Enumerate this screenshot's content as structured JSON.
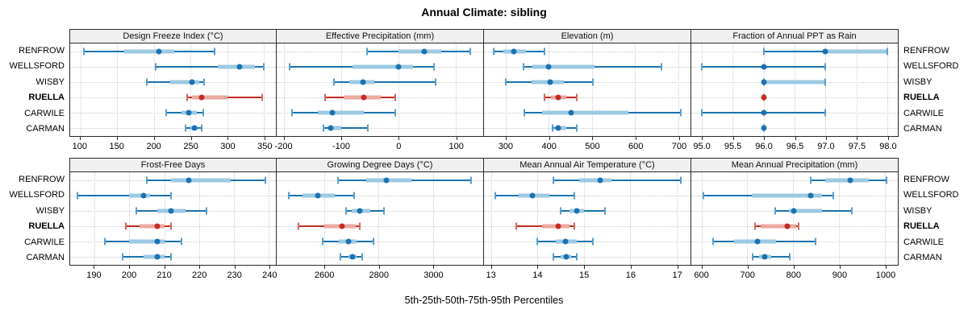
{
  "title": "Annual Climate: sibling",
  "footer": "5th-25th-50th-75th-95th Percentiles",
  "stations": [
    "RENFROW",
    "WELLSFORD",
    "WISBY",
    "RUELLA",
    "CARWILE",
    "CARMAN"
  ],
  "highlight_station": "RUELLA",
  "colors": {
    "series_main": "#1b72b0",
    "series_band": "#9ec9e2",
    "series_cap": "#5a9fcb",
    "highlight_main": "#c42b20",
    "highlight_band": "#eba9a2",
    "highlight_cap": "#d3685e",
    "grid": "#cccccc",
    "border": "#2a2a2a",
    "strip_bg": "#f0f0f0"
  },
  "chart_data": [
    {
      "type": "interval",
      "row": "top",
      "title": "Design Freeze Index (°C)",
      "xlim": [
        86,
        366
      ],
      "ticks": [
        100,
        150,
        200,
        250,
        300,
        350
      ],
      "tick_labels": [
        "100",
        "150",
        "200",
        "250",
        "300",
        "350"
      ],
      "series": [
        {
          "station": "RENFROW",
          "percentiles": [
            105,
            160,
            207,
            228,
            283
          ]
        },
        {
          "station": "WELLSFORD",
          "percentiles": [
            202,
            287,
            317,
            338,
            349
          ]
        },
        {
          "station": "WISBY",
          "percentiles": [
            190,
            222,
            252,
            262,
            268
          ]
        },
        {
          "station": "RUELLA",
          "percentiles": [
            245,
            252,
            265,
            300,
            347
          ]
        },
        {
          "station": "CARWILE",
          "percentiles": [
            217,
            237,
            247,
            258,
            267
          ]
        },
        {
          "station": "CARMAN",
          "percentiles": [
            243,
            250,
            255,
            260,
            265
          ]
        }
      ]
    },
    {
      "type": "interval",
      "row": "top",
      "title": "Effective Precipitation (mm)",
      "xlim": [
        -212,
        148
      ],
      "ticks": [
        -200,
        -100,
        0,
        100
      ],
      "tick_labels": [
        "-200",
        "-100",
        "0",
        "100"
      ],
      "series": [
        {
          "station": "RENFROW",
          "percentiles": [
            -55,
            0,
            45,
            75,
            125
          ]
        },
        {
          "station": "WELLSFORD",
          "percentiles": [
            -190,
            -80,
            0,
            25,
            62
          ]
        },
        {
          "station": "WISBY",
          "percentiles": [
            -112,
            -85,
            -62,
            -42,
            65
          ]
        },
        {
          "station": "RUELLA",
          "percentiles": [
            -127,
            -95,
            -60,
            -30,
            -5
          ]
        },
        {
          "station": "CARWILE",
          "percentiles": [
            -185,
            -140,
            -115,
            -60,
            -5
          ]
        },
        {
          "station": "CARMAN",
          "percentiles": [
            -130,
            -122,
            -118,
            -100,
            -53
          ]
        }
      ]
    },
    {
      "type": "interval",
      "row": "top",
      "title": "Elevation (m)",
      "xlim": [
        250,
        728
      ],
      "ticks": [
        300,
        400,
        500,
        600,
        700
      ],
      "tick_labels": [
        "300",
        "400",
        "500",
        "600",
        "700"
      ],
      "series": [
        {
          "station": "RENFROW",
          "percentiles": [
            272,
            295,
            320,
            348,
            390
          ]
        },
        {
          "station": "WELLSFORD",
          "percentiles": [
            342,
            362,
            400,
            505,
            660
          ]
        },
        {
          "station": "WISBY",
          "percentiles": [
            300,
            360,
            403,
            435,
            503
          ]
        },
        {
          "station": "RUELLA",
          "percentiles": [
            390,
            405,
            422,
            440,
            465
          ]
        },
        {
          "station": "CARWILE",
          "percentiles": [
            343,
            385,
            452,
            585,
            705
          ]
        },
        {
          "station": "CARMAN",
          "percentiles": [
            408,
            415,
            422,
            440,
            465
          ]
        }
      ]
    },
    {
      "type": "interval",
      "row": "top",
      "title": "Fraction of Annual PPT as Rain",
      "xlim": [
        94.83,
        98.17
      ],
      "ticks": [
        95.0,
        95.5,
        96.0,
        96.5,
        97.0,
        97.5,
        98.0
      ],
      "tick_labels": [
        "95.0",
        "95.5",
        "96.0",
        "96.5",
        "97.0",
        "97.5",
        "98.0"
      ],
      "series": [
        {
          "station": "RENFROW",
          "percentiles": [
            96,
            97,
            97,
            98,
            98
          ]
        },
        {
          "station": "WELLSFORD",
          "percentiles": [
            95,
            96,
            96,
            96,
            97
          ]
        },
        {
          "station": "WISBY",
          "percentiles": [
            96,
            96,
            96,
            97,
            97
          ]
        },
        {
          "station": "RUELLA",
          "percentiles": [
            96,
            96,
            96,
            96,
            96
          ]
        },
        {
          "station": "CARWILE",
          "percentiles": [
            95,
            96,
            96,
            96,
            97
          ]
        },
        {
          "station": "CARMAN",
          "percentiles": [
            96,
            96,
            96,
            96,
            96
          ]
        }
      ]
    },
    {
      "type": "interval",
      "row": "bottom",
      "title": "Frost-Free Days",
      "xlim": [
        183,
        242
      ],
      "ticks": [
        190,
        200,
        210,
        220,
        230,
        240
      ],
      "tick_labels": [
        "190",
        "200",
        "210",
        "220",
        "230",
        "240"
      ],
      "series": [
        {
          "station": "RENFROW",
          "percentiles": [
            205,
            212,
            217,
            229,
            239
          ]
        },
        {
          "station": "WELLSFORD",
          "percentiles": [
            185,
            200,
            204,
            206,
            212
          ]
        },
        {
          "station": "WISBY",
          "percentiles": [
            202,
            208,
            212,
            216,
            222
          ]
        },
        {
          "station": "RUELLA",
          "percentiles": [
            199,
            203,
            208,
            210,
            212
          ]
        },
        {
          "station": "CARWILE",
          "percentiles": [
            193,
            200,
            208,
            210,
            215
          ]
        },
        {
          "station": "CARMAN",
          "percentiles": [
            198,
            204,
            208,
            210,
            212
          ]
        }
      ]
    },
    {
      "type": "interval",
      "row": "bottom",
      "title": "Growing Degree Days (°C)",
      "xlim": [
        2425,
        3185
      ],
      "ticks": [
        2600,
        2800,
        3000
      ],
      "tick_labels": [
        "2600",
        "2800",
        "3000"
      ],
      "series": [
        {
          "station": "RENFROW",
          "percentiles": [
            2650,
            2755,
            2830,
            2920,
            3140
          ]
        },
        {
          "station": "WELLSFORD",
          "percentiles": [
            2470,
            2520,
            2575,
            2640,
            2710
          ]
        },
        {
          "station": "WISBY",
          "percentiles": [
            2680,
            2700,
            2730,
            2770,
            2820
          ]
        },
        {
          "station": "RUELLA",
          "percentiles": [
            2505,
            2600,
            2665,
            2715,
            2730
          ]
        },
        {
          "station": "CARWILE",
          "percentiles": [
            2595,
            2655,
            2690,
            2720,
            2780
          ]
        },
        {
          "station": "CARMAN",
          "percentiles": [
            2660,
            2690,
            2705,
            2720,
            2740
          ]
        }
      ]
    },
    {
      "type": "interval",
      "row": "bottom",
      "title": "Mean Annual Air Temperature (°C)",
      "xlim": [
        12.85,
        17.3
      ],
      "ticks": [
        13,
        14,
        15,
        16,
        17
      ],
      "tick_labels": [
        "13",
        "14",
        "15",
        "16",
        "17"
      ],
      "series": [
        {
          "station": "RENFROW",
          "percentiles": [
            14.35,
            14.9,
            15.35,
            15.6,
            17.1
          ]
        },
        {
          "station": "WELLSFORD",
          "percentiles": [
            13.1,
            13.6,
            13.9,
            14.25,
            14.8
          ]
        },
        {
          "station": "WISBY",
          "percentiles": [
            14.5,
            14.7,
            14.85,
            15.0,
            15.45
          ]
        },
        {
          "station": "RUELLA",
          "percentiles": [
            13.55,
            14.1,
            14.45,
            14.7,
            14.8
          ]
        },
        {
          "station": "CARWILE",
          "percentiles": [
            14.0,
            14.4,
            14.6,
            14.85,
            15.2
          ]
        },
        {
          "station": "CARMAN",
          "percentiles": [
            14.35,
            14.5,
            14.62,
            14.72,
            14.85
          ]
        }
      ]
    },
    {
      "type": "interval",
      "row": "bottom",
      "title": "Mean Annual Precipitation (mm)",
      "xlim": [
        578,
        1028
      ],
      "ticks": [
        600,
        700,
        800,
        900,
        1000
      ],
      "tick_labels": [
        "600",
        "700",
        "800",
        "900",
        "1000"
      ],
      "series": [
        {
          "station": "RENFROW",
          "percentiles": [
            838,
            870,
            925,
            965,
            1003
          ]
        },
        {
          "station": "WELLSFORD",
          "percentiles": [
            605,
            710,
            838,
            862,
            888
          ]
        },
        {
          "station": "WISBY",
          "percentiles": [
            760,
            790,
            802,
            862,
            928
          ]
        },
        {
          "station": "RUELLA",
          "percentiles": [
            717,
            730,
            788,
            806,
            812
          ]
        },
        {
          "station": "CARWILE",
          "percentiles": [
            625,
            672,
            723,
            762,
            848
          ]
        },
        {
          "station": "CARMAN",
          "percentiles": [
            712,
            725,
            738,
            752,
            793
          ]
        }
      ]
    }
  ]
}
